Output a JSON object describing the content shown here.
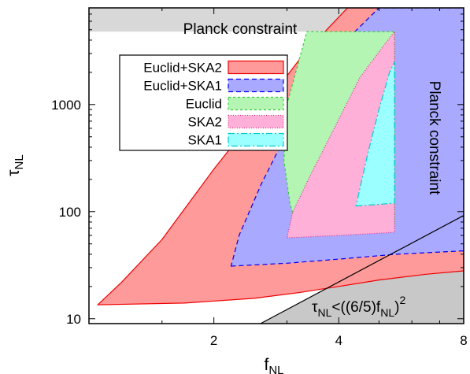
{
  "chart_data": {
    "type": "area",
    "xlabel": "f",
    "xlabel_sub": "NL",
    "ylabel": "τ",
    "ylabel_sub": "NL",
    "xscale": "log",
    "yscale": "log",
    "xlim": [
      1,
      8
    ],
    "ylim": [
      9,
      8000
    ],
    "xticks": [
      {
        "v": 2,
        "label": "2"
      },
      {
        "v": 4,
        "label": "4"
      },
      {
        "v": 8,
        "label": "8"
      }
    ],
    "yticks": [
      {
        "v": 10,
        "label": "10"
      },
      {
        "v": 100,
        "label": "100"
      },
      {
        "v": 1000,
        "label": "1000"
      }
    ],
    "annotations": {
      "planck_top": "Planck constraint",
      "planck_right": "Planck constraint",
      "bound_prefix": "τ",
      "bound_sub": "NL",
      "bound_mid": "<((6/5)f",
      "bound_sub2": "NL",
      "bound_end": ")",
      "bound_sup": "2"
    },
    "constraints": {
      "planck_tau_max": 4800,
      "planck_fnl_max": 5.45,
      "bound_color": "#c8c8c8",
      "planck_color": "#d8d8d8"
    },
    "legend_position": "top-left",
    "series": [
      {
        "name": "Euclid+SKA2",
        "fill": "#ff9a9a",
        "line": "#ee0000",
        "dash": "",
        "polygon": [
          [
            1.05,
            13.5
          ],
          [
            1.7,
            14
          ],
          [
            2.5,
            15.5
          ],
          [
            3.2,
            17.5
          ],
          [
            4,
            20
          ],
          [
            5,
            23
          ],
          [
            6.5,
            26
          ],
          [
            8,
            28
          ],
          [
            8,
            8000
          ],
          [
            4.2,
            8000
          ],
          [
            3.3,
            3000
          ],
          [
            2.6,
            900
          ],
          [
            2.0,
            250
          ],
          [
            1.5,
            55
          ],
          [
            1.2,
            22
          ]
        ]
      },
      {
        "name": "Euclid+SKA1",
        "fill": "#a9a9ff",
        "line": "#0000ee",
        "dash": "6,4",
        "polygon": [
          [
            2.2,
            31
          ],
          [
            3.0,
            33
          ],
          [
            4.0,
            36
          ],
          [
            5.5,
            40
          ],
          [
            8,
            43
          ],
          [
            8,
            8000
          ],
          [
            5.0,
            8000
          ],
          [
            4.3,
            4500
          ],
          [
            3.7,
            2000
          ],
          [
            3.1,
            700
          ],
          [
            2.6,
            180
          ],
          [
            2.3,
            60
          ]
        ]
      },
      {
        "name": "Euclid",
        "fill": "#b4f5b4",
        "line": "#33cc33",
        "dash": "3,3",
        "polygon": [
          [
            3.15,
            75
          ],
          [
            4.0,
            72
          ],
          [
            5.45,
            75
          ],
          [
            5.45,
            4800
          ],
          [
            3.35,
            4800
          ],
          [
            3.0,
            1000
          ],
          [
            2.95,
            300
          ],
          [
            3.05,
            120
          ]
        ]
      },
      {
        "name": "SKA2",
        "fill": "#ffb0d8",
        "line": "#dd3388",
        "dash": "1,2",
        "polygon": [
          [
            3.0,
            57
          ],
          [
            4.0,
            60
          ],
          [
            5.45,
            64
          ],
          [
            5.45,
            4800
          ],
          [
            5.2,
            3800
          ],
          [
            4.5,
            1800
          ],
          [
            3.9,
            600
          ],
          [
            3.4,
            210
          ],
          [
            3.1,
            100
          ]
        ]
      },
      {
        "name": "SKA1",
        "fill": "#9cffff",
        "line": "#00cccc",
        "dash": "8,3,2,3",
        "polygon": [
          [
            4.4,
            113
          ],
          [
            5.0,
            117
          ],
          [
            5.45,
            120
          ],
          [
            5.45,
            2500
          ],
          [
            5.3,
            2000
          ],
          [
            5.0,
            900
          ],
          [
            4.7,
            350
          ]
        ]
      }
    ]
  }
}
